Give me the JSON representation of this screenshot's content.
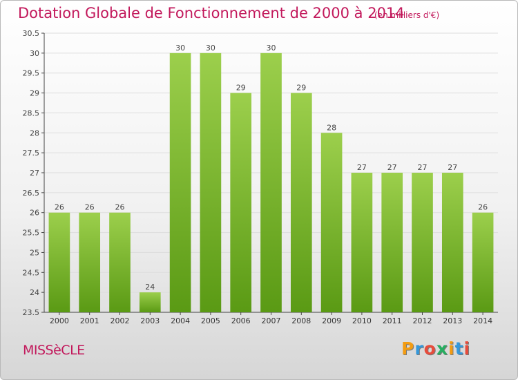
{
  "header": {
    "title": "Dotation Globale de Fonctionnement de 2000 à 2014",
    "subtitle": "(en milliers d'€)"
  },
  "footer": {
    "commune": "MISSèCLE",
    "brand": "Proxiti",
    "brand_colors": [
      "#f39c12",
      "#3498db",
      "#e74c3c",
      "#27ae60",
      "#f39c12",
      "#3498db",
      "#e74c3c"
    ]
  },
  "colors": {
    "accent": "#c2185b",
    "bar_light": "#9ccf4c",
    "bar_dark": "#5a9a14",
    "grid": "#dddddd"
  },
  "chart_data": {
    "type": "bar",
    "categories": [
      "2000",
      "2001",
      "2002",
      "2003",
      "2004",
      "2005",
      "2006",
      "2007",
      "2008",
      "2009",
      "2010",
      "2011",
      "2012",
      "2013",
      "2014"
    ],
    "values": [
      26,
      26,
      26,
      24,
      30,
      30,
      29,
      30,
      29,
      28,
      27,
      27,
      27,
      27,
      26
    ],
    "title": "Dotation Globale de Fonctionnement de 2000 à 2014",
    "ylim": [
      23.5,
      30.5
    ],
    "yticks": [
      23.5,
      24,
      24.5,
      25,
      25.5,
      26,
      26.5,
      27,
      27.5,
      28,
      28.5,
      29,
      29.5,
      30,
      30.5
    ],
    "ytick_labels": [
      "23.5",
      "24",
      "24.5",
      "25",
      "25.5",
      "26",
      "26.5",
      "27",
      "27.5",
      "28",
      "28.5",
      "29",
      "29.5",
      "30",
      "30.5"
    ],
    "grid": true,
    "data_labels": true
  }
}
